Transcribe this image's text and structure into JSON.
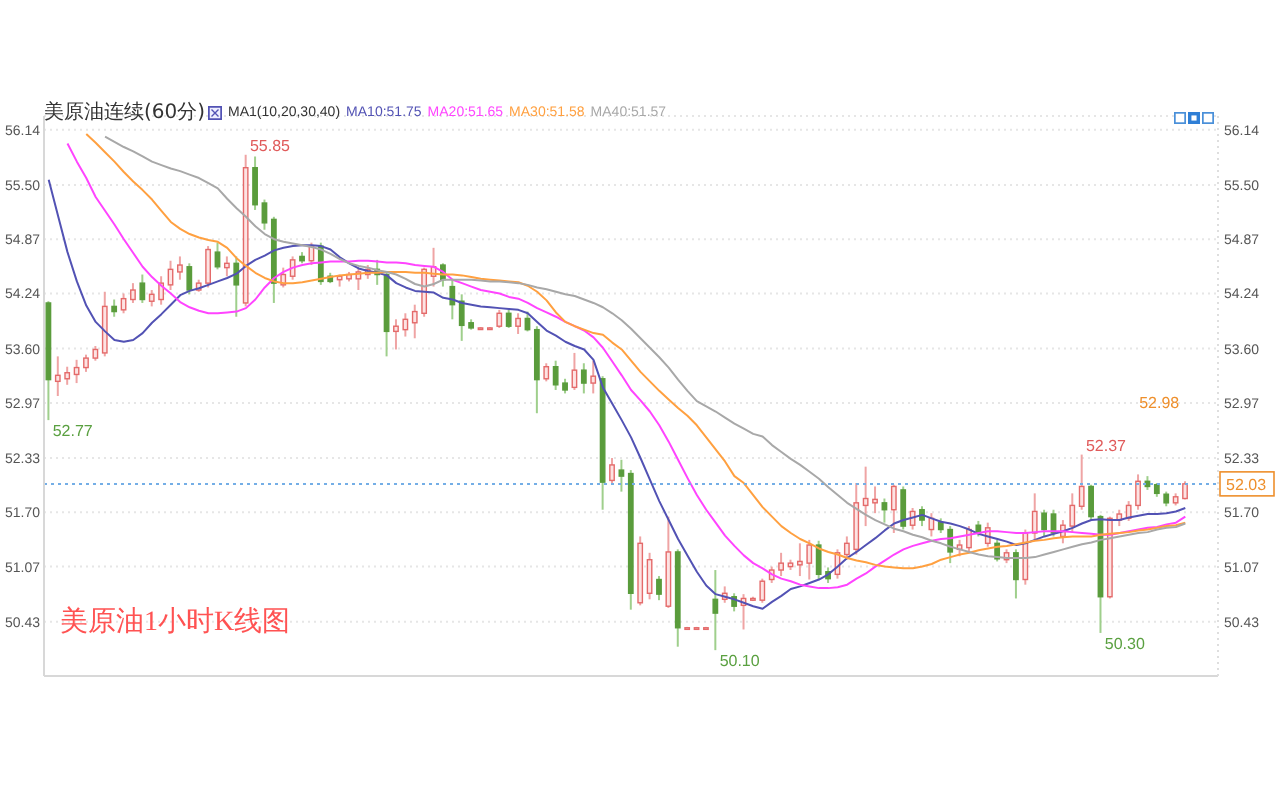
{
  "chart_data": {
    "type": "candlestick",
    "title": "美原油1小时K线图",
    "subtitle": "美原油连续(60分)",
    "legend_title": "MA1(10,20,30,40)",
    "legend": "top left",
    "tick_labels": "y",
    "grid": "y",
    "categories": [
      null,
      null,
      null,
      null,
      null,
      null,
      null,
      null,
      null,
      null,
      null,
      null,
      null,
      null,
      null,
      null,
      null,
      null,
      null,
      null,
      null,
      null,
      null,
      null,
      null,
      null,
      null,
      null,
      null,
      null,
      null,
      null,
      null,
      null,
      null,
      null,
      null,
      null,
      null,
      null,
      null,
      null,
      null,
      null,
      null,
      null,
      null,
      null,
      null,
      null,
      null,
      null,
      null,
      null,
      null,
      null,
      null,
      null,
      null,
      null,
      null,
      null,
      null,
      null,
      null,
      null,
      null,
      null,
      null,
      null,
      null,
      null,
      null,
      null,
      null,
      null,
      null,
      null,
      null,
      null,
      null,
      null,
      null,
      null,
      null,
      null,
      null,
      null,
      null,
      null,
      null,
      null,
      null,
      null,
      null,
      null,
      null,
      null,
      null,
      null,
      null,
      null,
      null,
      null,
      null,
      null,
      null,
      null,
      null,
      null,
      null,
      null,
      null,
      null,
      null,
      null,
      null,
      null,
      null,
      null,
      null,
      null
    ],
    "ohlc": [
      [
        54.13,
        54.15,
        52.77,
        53.24
      ],
      [
        53.22,
        53.51,
        53.05,
        53.29
      ],
      [
        53.25,
        53.39,
        53.18,
        53.32
      ],
      [
        53.3,
        53.47,
        53.2,
        53.38
      ],
      [
        53.38,
        53.53,
        53.33,
        53.49
      ],
      [
        53.49,
        53.63,
        53.46,
        53.59
      ],
      [
        53.55,
        54.26,
        53.51,
        54.09
      ],
      [
        54.09,
        54.17,
        53.97,
        54.03
      ],
      [
        54.05,
        54.24,
        54.01,
        54.18
      ],
      [
        54.17,
        54.36,
        54.13,
        54.28
      ],
      [
        54.36,
        54.46,
        54.13,
        54.17
      ],
      [
        54.15,
        54.28,
        54.09,
        54.23
      ],
      [
        54.17,
        54.44,
        54.11,
        54.36
      ],
      [
        54.34,
        54.62,
        54.28,
        54.52
      ],
      [
        54.49,
        54.67,
        54.4,
        54.57
      ],
      [
        54.55,
        54.59,
        54.23,
        54.28
      ],
      [
        54.28,
        54.4,
        54.26,
        54.36
      ],
      [
        54.36,
        54.79,
        54.31,
        54.75
      ],
      [
        54.72,
        54.83,
        54.52,
        54.55
      ],
      [
        54.54,
        54.67,
        54.44,
        54.59
      ],
      [
        54.59,
        54.67,
        53.97,
        54.34
      ],
      [
        54.13,
        55.85,
        54.09,
        55.7
      ],
      [
        55.7,
        55.83,
        55.21,
        55.27
      ],
      [
        55.29,
        55.33,
        54.98,
        55.06
      ],
      [
        55.1,
        55.13,
        54.13,
        54.36
      ],
      [
        54.34,
        54.54,
        54.31,
        54.46
      ],
      [
        54.44,
        54.67,
        54.4,
        54.63
      ],
      [
        54.67,
        54.72,
        54.59,
        54.62
      ],
      [
        54.62,
        54.83,
        54.57,
        54.79
      ],
      [
        54.79,
        54.83,
        54.34,
        54.38
      ],
      [
        54.44,
        54.48,
        54.36,
        54.38
      ],
      [
        54.4,
        54.46,
        54.32,
        54.44
      ],
      [
        54.41,
        54.49,
        54.38,
        54.46
      ],
      [
        54.41,
        54.54,
        54.28,
        54.49
      ],
      [
        54.46,
        54.57,
        54.41,
        54.52
      ],
      [
        54.52,
        54.63,
        54.34,
        54.46
      ],
      [
        54.46,
        54.49,
        53.51,
        53.8
      ],
      [
        53.8,
        53.94,
        53.59,
        53.86
      ],
      [
        53.82,
        54.01,
        53.74,
        53.94
      ],
      [
        53.9,
        54.11,
        53.72,
        54.03
      ],
      [
        54.01,
        54.54,
        53.97,
        54.52
      ],
      [
        54.44,
        54.77,
        54.32,
        54.55
      ],
      [
        54.57,
        54.59,
        54.32,
        54.4
      ],
      [
        54.32,
        54.4,
        53.94,
        54.11
      ],
      [
        54.15,
        54.23,
        53.69,
        53.87
      ],
      [
        53.9,
        53.94,
        53.82,
        53.84
      ],
      [
        53.84,
        53.85,
        53.83,
        53.84
      ],
      [
        53.84,
        53.85,
        53.83,
        53.84
      ],
      [
        53.86,
        54.05,
        53.84,
        54.01
      ],
      [
        54.01,
        54.05,
        53.84,
        53.86
      ],
      [
        53.86,
        54.01,
        53.77,
        53.95
      ],
      [
        53.95,
        54.03,
        53.8,
        53.82
      ],
      [
        53.82,
        53.86,
        52.85,
        53.24
      ],
      [
        53.25,
        53.43,
        53.22,
        53.39
      ],
      [
        53.39,
        53.46,
        53.12,
        53.18
      ],
      [
        53.2,
        53.25,
        53.08,
        53.12
      ],
      [
        53.15,
        53.55,
        53.12,
        53.35
      ],
      [
        53.35,
        53.43,
        53.08,
        53.2
      ],
      [
        53.2,
        53.46,
        53.08,
        53.28
      ],
      [
        53.25,
        53.28,
        51.73,
        52.05
      ],
      [
        52.07,
        52.33,
        52.03,
        52.25
      ],
      [
        52.19,
        52.31,
        51.94,
        52.12
      ],
      [
        52.15,
        52.19,
        50.57,
        50.76
      ],
      [
        50.65,
        51.42,
        50.62,
        51.34
      ],
      [
        50.76,
        51.23,
        50.69,
        51.15
      ],
      [
        50.92,
        50.96,
        50.68,
        50.75
      ],
      [
        50.61,
        51.65,
        50.59,
        51.24
      ],
      [
        51.24,
        51.27,
        50.14,
        50.36
      ],
      [
        50.36,
        50.37,
        50.35,
        50.36
      ],
      [
        50.36,
        50.37,
        50.35,
        50.36
      ],
      [
        50.36,
        50.37,
        50.35,
        50.36
      ],
      [
        50.69,
        51.03,
        50.1,
        50.53
      ],
      [
        50.69,
        50.84,
        50.65,
        50.76
      ],
      [
        50.72,
        50.76,
        50.55,
        50.61
      ],
      [
        50.62,
        50.75,
        50.34,
        50.7
      ],
      [
        50.68,
        50.72,
        50.67,
        50.7
      ],
      [
        50.68,
        50.93,
        50.65,
        50.9
      ],
      [
        50.92,
        51.07,
        50.88,
        51.03
      ],
      [
        51.03,
        51.23,
        50.96,
        51.11
      ],
      [
        51.07,
        51.15,
        51.03,
        51.11
      ],
      [
        51.09,
        51.34,
        50.96,
        51.13
      ],
      [
        51.11,
        51.38,
        50.92,
        51.32
      ],
      [
        51.32,
        51.37,
        50.92,
        50.98
      ],
      [
        51.01,
        51.06,
        50.88,
        50.93
      ],
      [
        50.98,
        51.27,
        50.93,
        51.23
      ],
      [
        51.21,
        51.42,
        51.15,
        51.34
      ],
      [
        51.27,
        52.04,
        51.21,
        51.81
      ],
      [
        51.78,
        52.23,
        51.54,
        51.86
      ],
      [
        51.81,
        52.0,
        51.69,
        51.85
      ],
      [
        51.81,
        51.86,
        51.58,
        51.73
      ],
      [
        51.73,
        52.02,
        51.46,
        52.0
      ],
      [
        51.96,
        52.0,
        51.5,
        51.54
      ],
      [
        51.55,
        51.75,
        51.5,
        51.71
      ],
      [
        51.73,
        51.77,
        51.54,
        51.61
      ],
      [
        51.5,
        51.69,
        51.42,
        51.63
      ],
      [
        51.58,
        51.63,
        51.46,
        51.5
      ],
      [
        51.5,
        51.54,
        51.11,
        51.24
      ],
      [
        51.27,
        51.38,
        51.19,
        51.32
      ],
      [
        51.29,
        51.54,
        51.24,
        51.5
      ],
      [
        51.55,
        51.6,
        51.42,
        51.46
      ],
      [
        51.34,
        51.58,
        51.3,
        51.52
      ],
      [
        51.34,
        51.38,
        51.13,
        51.16
      ],
      [
        51.15,
        51.27,
        51.11,
        51.23
      ],
      [
        51.23,
        51.27,
        50.7,
        50.92
      ],
      [
        50.92,
        51.5,
        50.86,
        51.46
      ],
      [
        51.46,
        51.92,
        51.38,
        51.71
      ],
      [
        51.69,
        51.73,
        51.42,
        51.5
      ],
      [
        51.68,
        51.73,
        51.42,
        51.46
      ],
      [
        51.42,
        51.61,
        51.34,
        51.55
      ],
      [
        51.54,
        51.92,
        51.46,
        51.78
      ],
      [
        51.77,
        52.37,
        51.73,
        52.0
      ],
      [
        52.0,
        52.02,
        51.61,
        51.65
      ],
      [
        51.65,
        51.67,
        50.3,
        50.72
      ],
      [
        50.72,
        51.65,
        50.7,
        51.63
      ],
      [
        51.61,
        51.73,
        51.54,
        51.68
      ],
      [
        51.63,
        51.83,
        51.6,
        51.78
      ],
      [
        51.78,
        52.14,
        51.73,
        52.06
      ],
      [
        52.06,
        52.12,
        51.96,
        52.0
      ],
      [
        52.02,
        52.04,
        51.88,
        51.92
      ],
      [
        51.91,
        51.94,
        51.77,
        51.81
      ],
      [
        51.81,
        51.92,
        51.78,
        51.88
      ],
      [
        51.86,
        52.06,
        51.85,
        52.03
      ]
    ],
    "series": [
      {
        "type": "line",
        "name": "MA10:51.75",
        "color": "#5252b4",
        "values": [
          55.56,
          55.14,
          54.72,
          54.38,
          54.1,
          53.91,
          53.8,
          53.7,
          53.68,
          53.7,
          53.78,
          53.9,
          54.0,
          54.11,
          54.22,
          54.27,
          54.3,
          54.34,
          54.38,
          54.42,
          54.47,
          54.56,
          54.63,
          54.68,
          54.74,
          54.77,
          54.79,
          54.8,
          54.8,
          54.79,
          54.75,
          54.66,
          54.59,
          54.53,
          54.5,
          54.48,
          54.45,
          54.36,
          54.31,
          54.27,
          54.26,
          54.25,
          54.19,
          54.17,
          54.13,
          54.11,
          54.09,
          54.08,
          54.07,
          54.06,
          54.05,
          54.01,
          53.91,
          53.81,
          53.75,
          53.68,
          53.63,
          53.59,
          53.47,
          53.15,
          52.96,
          52.77,
          52.57,
          52.33,
          52.08,
          51.83,
          51.61,
          51.39,
          51.2,
          51.01,
          50.85,
          50.75,
          50.72,
          50.69,
          50.65,
          50.61,
          50.58,
          50.66,
          50.73,
          50.81,
          50.84,
          50.88,
          50.92,
          50.98,
          51.07,
          51.17,
          51.24,
          51.32,
          51.4,
          51.49,
          51.57,
          51.61,
          51.64,
          51.67,
          51.63,
          51.59,
          51.57,
          51.54,
          51.5,
          51.45,
          51.42,
          51.39,
          51.36,
          51.32,
          51.34,
          51.38,
          51.42,
          51.45,
          51.48,
          51.52,
          51.57,
          51.61,
          51.62,
          51.61,
          51.61,
          51.64,
          51.66,
          51.68,
          51.68,
          51.69,
          51.71,
          51.75
        ]
      },
      {
        "type": "line",
        "name": "MA20:51.65",
        "color": "#ff44ff",
        "values": [
          null,
          null,
          55.98,
          55.77,
          55.58,
          55.36,
          55.2,
          55.04,
          54.87,
          54.71,
          54.55,
          54.43,
          54.33,
          54.24,
          54.14,
          54.08,
          54.04,
          54.01,
          54.01,
          54.02,
          54.03,
          54.07,
          54.17,
          54.31,
          54.42,
          54.49,
          54.54,
          54.57,
          54.59,
          54.6,
          54.61,
          54.61,
          54.61,
          54.62,
          54.62,
          54.61,
          54.6,
          54.6,
          54.59,
          54.57,
          54.56,
          54.55,
          54.49,
          54.4,
          54.36,
          54.32,
          54.28,
          54.26,
          54.24,
          54.2,
          54.18,
          54.13,
          54.07,
          54.02,
          53.97,
          53.91,
          53.86,
          53.81,
          53.73,
          53.61,
          53.45,
          53.29,
          53.12,
          53.0,
          52.87,
          52.71,
          52.52,
          52.31,
          52.1,
          51.9,
          51.73,
          51.58,
          51.43,
          51.31,
          51.2,
          51.11,
          51.05,
          50.98,
          50.93,
          50.9,
          50.86,
          50.84,
          50.82,
          50.82,
          50.83,
          50.86,
          50.93,
          50.99,
          51.07,
          51.14,
          51.21,
          51.27,
          51.31,
          51.34,
          51.37,
          51.39,
          51.4,
          51.42,
          51.44,
          51.46,
          51.48,
          51.48,
          51.47,
          51.46,
          51.46,
          51.47,
          51.48,
          51.48,
          51.48,
          51.47,
          51.46,
          51.45,
          51.44,
          51.44,
          51.46,
          51.48,
          51.5,
          51.52,
          51.53,
          51.56,
          51.58,
          51.65
        ]
      },
      {
        "type": "line",
        "name": "MA30:51.58",
        "color": "#ffa040",
        "values": [
          null,
          null,
          null,
          null,
          56.09,
          55.99,
          55.88,
          55.77,
          55.65,
          55.54,
          55.44,
          55.33,
          55.2,
          55.07,
          54.99,
          54.93,
          54.89,
          54.86,
          54.84,
          54.77,
          54.65,
          54.56,
          54.48,
          54.42,
          54.38,
          54.36,
          54.36,
          54.37,
          54.39,
          54.41,
          54.43,
          54.45,
          54.46,
          54.47,
          54.48,
          54.48,
          54.49,
          54.49,
          54.49,
          54.48,
          54.48,
          54.47,
          54.46,
          54.46,
          54.45,
          54.43,
          54.41,
          54.4,
          54.39,
          54.38,
          54.37,
          54.33,
          54.26,
          54.16,
          54.02,
          53.91,
          53.86,
          53.82,
          53.78,
          53.76,
          53.67,
          53.59,
          53.46,
          53.33,
          53.22,
          53.11,
          53.01,
          52.91,
          52.82,
          52.71,
          52.57,
          52.43,
          52.29,
          52.12,
          52.04,
          51.9,
          51.76,
          51.65,
          51.54,
          51.46,
          51.39,
          51.34,
          51.28,
          51.24,
          51.21,
          51.17,
          51.14,
          51.12,
          51.09,
          51.07,
          51.06,
          51.05,
          51.05,
          51.07,
          51.1,
          51.15,
          51.18,
          51.21,
          51.23,
          51.26,
          51.28,
          51.3,
          51.31,
          51.33,
          51.35,
          51.37,
          51.38,
          51.4,
          51.41,
          51.42,
          51.42,
          51.42,
          51.44,
          51.45,
          51.46,
          51.47,
          51.49,
          51.5,
          51.52,
          51.54,
          51.55,
          51.58
        ]
      },
      {
        "type": "line",
        "name": "MA40:51.57",
        "color": "#a8a8a8",
        "values": [
          null,
          null,
          null,
          null,
          null,
          null,
          56.06,
          56.0,
          55.94,
          55.89,
          55.83,
          55.77,
          55.73,
          55.69,
          55.66,
          55.62,
          55.58,
          55.52,
          55.46,
          55.34,
          55.23,
          55.13,
          55.02,
          54.93,
          54.87,
          54.84,
          54.82,
          54.8,
          54.78,
          54.75,
          54.7,
          54.64,
          54.59,
          54.56,
          54.54,
          54.51,
          54.49,
          54.46,
          54.41,
          54.35,
          54.32,
          54.35,
          54.4,
          54.4,
          54.4,
          54.4,
          54.39,
          54.38,
          54.38,
          54.37,
          54.36,
          54.34,
          54.31,
          54.29,
          54.26,
          54.23,
          54.21,
          54.17,
          54.13,
          54.08,
          54.01,
          53.93,
          53.83,
          53.72,
          53.61,
          53.5,
          53.38,
          53.24,
          53.11,
          52.99,
          52.93,
          52.87,
          52.8,
          52.73,
          52.67,
          52.61,
          52.58,
          52.48,
          52.4,
          52.32,
          52.25,
          52.17,
          52.09,
          51.99,
          51.9,
          51.81,
          51.74,
          51.67,
          51.61,
          51.56,
          51.51,
          51.48,
          51.44,
          51.41,
          51.37,
          51.34,
          51.3,
          51.27,
          51.24,
          51.21,
          51.19,
          51.18,
          51.17,
          51.17,
          51.17,
          51.18,
          51.21,
          51.24,
          51.27,
          51.3,
          51.33,
          51.35,
          51.38,
          51.4,
          51.42,
          51.44,
          51.46,
          51.47,
          51.5,
          51.52,
          51.53,
          51.57
        ]
      }
    ],
    "ylim": [
      49.8,
      56.3
    ],
    "yticks": [
      56.14,
      {
        "value": 55.5,
        "label": "55.50"
      },
      54.87,
      54.24,
      {
        "value": 53.6,
        "label": "53.60"
      },
      52.97,
      52.33,
      {
        "value": 51.7,
        "label": "51.70"
      },
      51.07,
      50.43
    ],
    "y2lim": [
      49.8,
      56.3
    ],
    "y2ticks": [
      56.14,
      {
        "value": 55.5,
        "label": "55.50"
      },
      54.87,
      54.24,
      {
        "value": 53.6,
        "label": "53.60"
      },
      52.97,
      52.33,
      {
        "value": 51.7,
        "label": "51.70"
      },
      51.07,
      50.43
    ],
    "ref_lines": [
      {
        "axis": "y",
        "value": 52.03,
        "color": "#74aee6",
        "line_style": "dotted"
      }
    ],
    "annotations": [
      "55.85",
      "52.77",
      "50.10",
      "52.37",
      "50.30",
      "52.98",
      "52.03"
    ]
  }
}
